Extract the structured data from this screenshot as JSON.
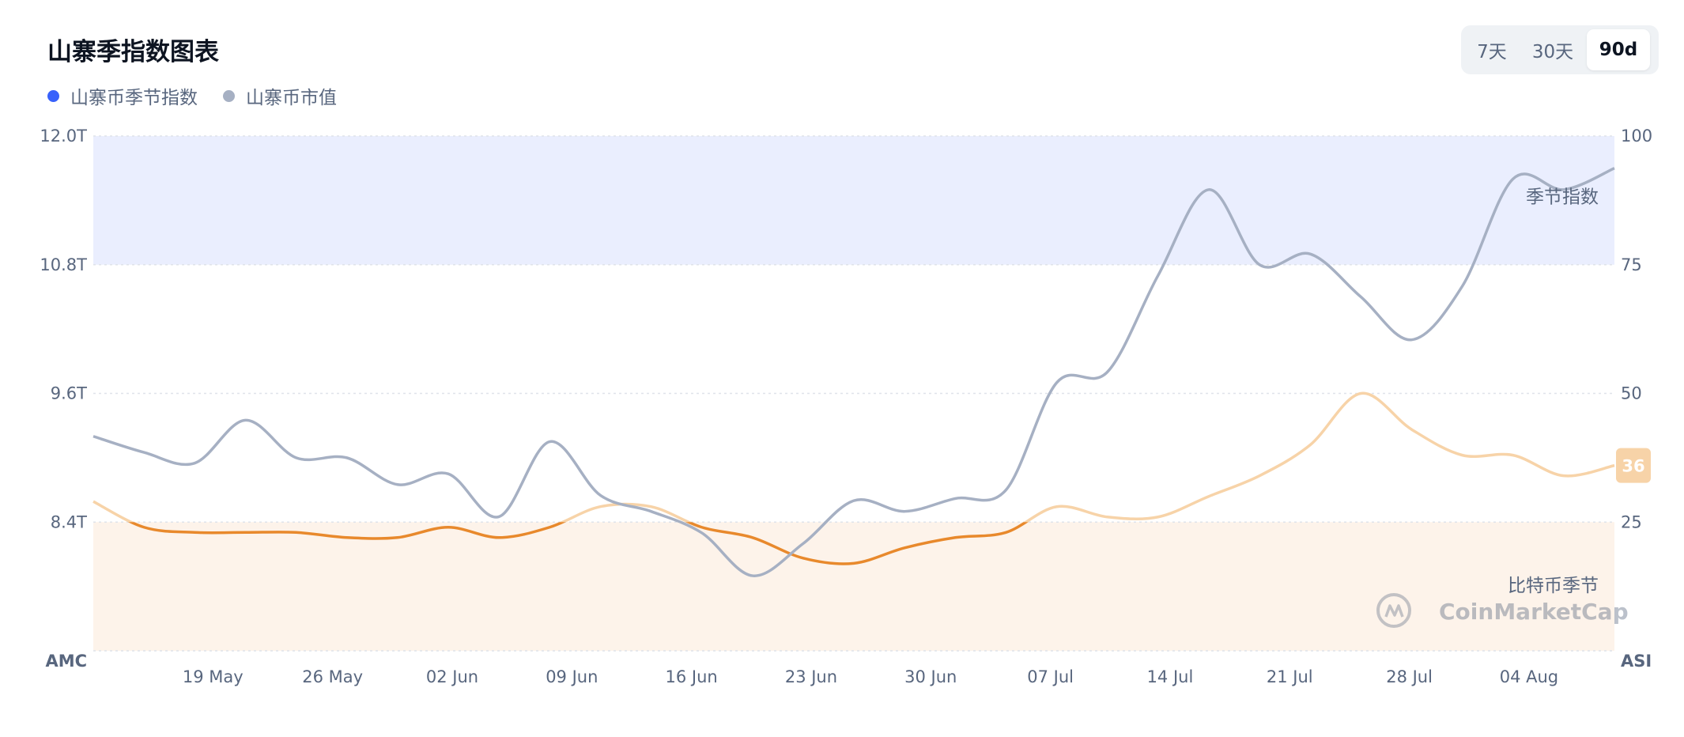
{
  "header": {
    "title": "山寨季指数图表"
  },
  "legend": [
    {
      "label": "山寨币季节指数",
      "color": "#3861fb"
    },
    {
      "label": "山寨币市值",
      "color": "#a6b0c3"
    }
  ],
  "range_selector": {
    "options": [
      "7天",
      "30天",
      "90d"
    ],
    "selected": "90d"
  },
  "watermark": {
    "text": "CoinMarketCap",
    "icon": "coinmarketcap-logo-icon"
  },
  "zones": {
    "altcoin_season_label": "季节指数",
    "bitcoin_season_label": "比特币季节"
  },
  "colors": {
    "orange": "#e8892c",
    "light_orange": "#f7d3a8",
    "gray_line": "#a6b0c3",
    "blue_zone": "#eaeefe",
    "orange_zone": "#fdf3ea"
  },
  "chart_data": {
    "type": "line",
    "x": [
      "12 May",
      "15 May",
      "18 May",
      "21 May",
      "24 May",
      "27 May",
      "30 May",
      "02 Jun",
      "05 Jun",
      "08 Jun",
      "11 Jun",
      "14 Jun",
      "17 Jun",
      "20 Jun",
      "23 Jun",
      "26 Jun",
      "29 Jun",
      "02 Jul",
      "05 Jul",
      "08 Jul",
      "11 Jul",
      "14 Jul",
      "17 Jul",
      "20 Jul",
      "23 Jul",
      "26 Jul",
      "29 Jul",
      "01 Aug",
      "04 Aug",
      "07 Aug",
      "09 Aug"
    ],
    "x_tick_labels": [
      "19 May",
      "26 May",
      "02 Jun",
      "09 Jun",
      "16 Jun",
      "23 Jun",
      "30 Jun",
      "07 Jul",
      "14 Jul",
      "21 Jul",
      "28 Jul",
      "04 Aug"
    ],
    "left_axis": {
      "title": "AMC",
      "ticks": [
        "12.0T",
        "10.8T",
        "9.6T",
        "8.4T"
      ],
      "range": [
        7.2,
        12.0
      ],
      "unit": "T"
    },
    "right_axis": {
      "title": "ASI",
      "ticks": [
        "100",
        "75",
        "50",
        "25"
      ],
      "range": [
        0,
        100
      ]
    },
    "series": [
      {
        "name": "山寨币季节指数",
        "axis": "right",
        "values": [
          29,
          24,
          23,
          23,
          23,
          22,
          22,
          24,
          22,
          24,
          28,
          28,
          24,
          22,
          18,
          17,
          20,
          22,
          23,
          28,
          26,
          26,
          30,
          34,
          40,
          50,
          43,
          38,
          38,
          34,
          36
        ]
      },
      {
        "name": "山寨币市值",
        "axis": "left",
        "unit": "T",
        "values": [
          9.2,
          9.05,
          8.95,
          9.35,
          9.0,
          9.0,
          8.75,
          8.85,
          8.45,
          9.15,
          8.65,
          8.5,
          8.3,
          7.9,
          8.2,
          8.6,
          8.5,
          8.62,
          8.7,
          9.7,
          9.8,
          10.7,
          11.5,
          10.8,
          10.9,
          10.5,
          10.1,
          10.6,
          11.6,
          11.5,
          11.7
        ]
      }
    ],
    "current_value_badge": "36",
    "zones": [
      {
        "label": "季节指数",
        "from": 75,
        "to": 100
      },
      {
        "label": "比特币季节",
        "from": 0,
        "to": 25
      }
    ]
  }
}
